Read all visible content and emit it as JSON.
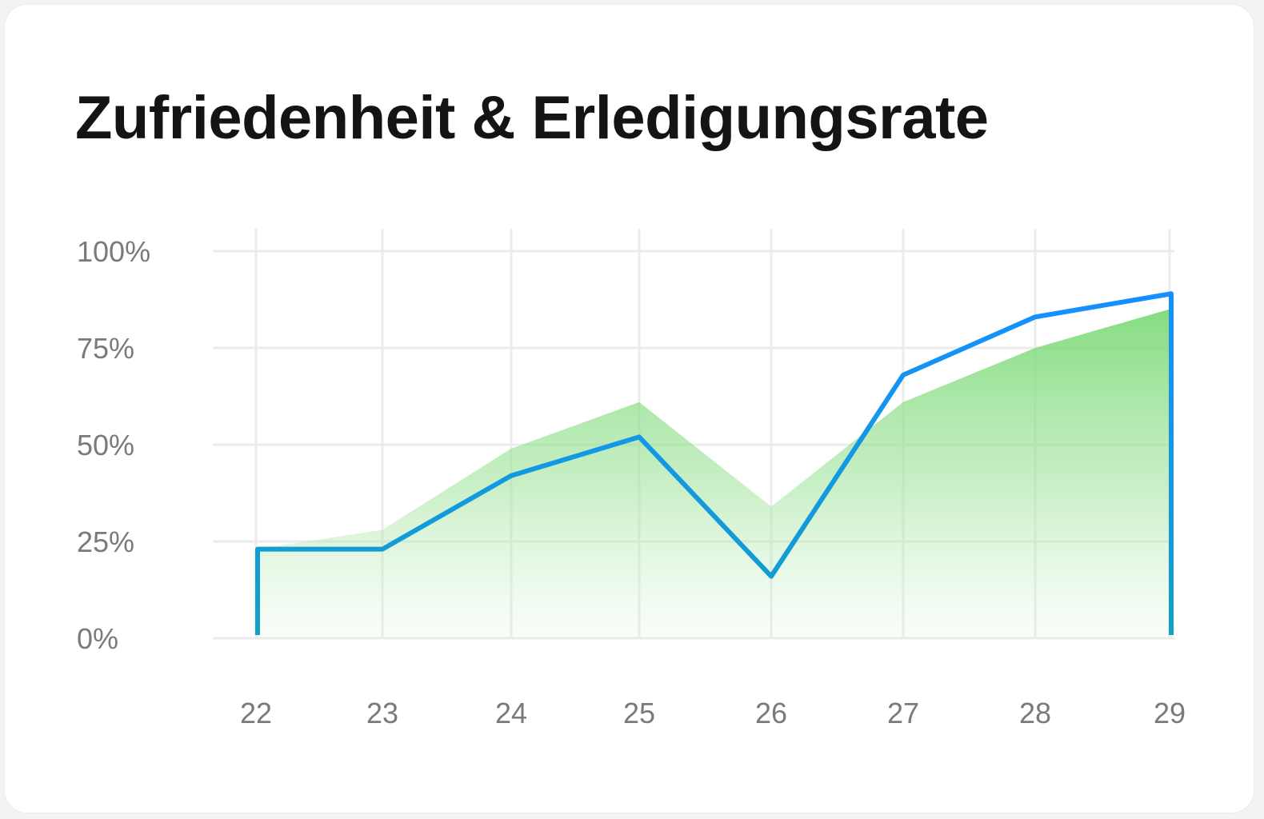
{
  "chart_data": {
    "type": "area",
    "title": "Zufriedenheit & Erledigungsrate",
    "categories": [
      "22",
      "23",
      "24",
      "25",
      "26",
      "27",
      "28",
      "29"
    ],
    "yticks": [
      "0%",
      "25%",
      "50%",
      "75%",
      "100%"
    ],
    "ylim": [
      0,
      100
    ],
    "grid": true,
    "series": [
      {
        "type": "area",
        "color": "#7ddb7a",
        "values": [
          23,
          28,
          49,
          61,
          34,
          61,
          75,
          85
        ]
      },
      {
        "type": "line",
        "color": "#1a8cf0",
        "values": [
          23,
          23,
          42,
          52,
          16,
          68,
          83,
          89
        ]
      }
    ]
  }
}
